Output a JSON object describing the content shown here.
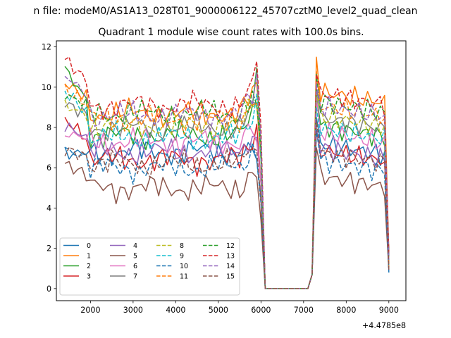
{
  "figure": {
    "suptitle": "n file: modeM0/AS1A13_028T01_9000006122_45707cztM0_level2_quad_clean"
  },
  "chart_data": {
    "type": "line",
    "title": "Quadrant 1 module wise count rates with 100.0s bins.",
    "xlabel": "",
    "ylabel": "",
    "x_offset_label": "+4.4785e8",
    "xlim": [
      1200,
      9400
    ],
    "ylim": [
      -0.6,
      12.3
    ],
    "xticks": [
      2000,
      3000,
      4000,
      5000,
      6000,
      7000,
      8000,
      9000
    ],
    "yticks": [
      0,
      2,
      4,
      6,
      8,
      10,
      12
    ],
    "grid": false,
    "legend": {
      "position": "lower-left",
      "columns": 4
    },
    "x": [
      1400,
      1500,
      1600,
      1700,
      1800,
      1900,
      2000,
      2100,
      2200,
      2300,
      2400,
      2500,
      2600,
      2700,
      2800,
      2900,
      3000,
      3100,
      3200,
      3300,
      3400,
      3500,
      3600,
      3700,
      3800,
      3900,
      4000,
      4100,
      4200,
      4300,
      4400,
      4500,
      4600,
      4700,
      4800,
      4900,
      5000,
      5100,
      5200,
      5300,
      5400,
      5500,
      5600,
      5700,
      5800,
      5900,
      6000,
      6100,
      6200,
      6300,
      6400,
      6500,
      6600,
      6700,
      6800,
      6900,
      7000,
      7100,
      7200,
      7300,
      7400,
      7500,
      7600,
      7700,
      7800,
      7900,
      8000,
      8100,
      8200,
      8300,
      8400,
      8500,
      8600,
      8700,
      8800,
      8900,
      9000
    ],
    "series": [
      {
        "name": "0",
        "color": "#1f77b4",
        "dash": "solid",
        "base": 6.8,
        "start": 6.7,
        "post": 7.2
      },
      {
        "name": "1",
        "color": "#ff7f0e",
        "dash": "solid",
        "base": 8.7,
        "start": 10.2,
        "post": 9.8
      },
      {
        "name": "2",
        "color": "#2ca02c",
        "dash": "solid",
        "base": 7.6,
        "start": 10.9,
        "post": 8.1
      },
      {
        "name": "3",
        "color": "#d62728",
        "dash": "solid",
        "base": 6.4,
        "start": 8.4,
        "post": 6.9
      },
      {
        "name": "4",
        "color": "#9467bd",
        "dash": "solid",
        "base": 6.8,
        "start": 8.1,
        "post": 7.0
      },
      {
        "name": "5",
        "color": "#8c564b",
        "dash": "solid",
        "base": 5.0,
        "start": 6.2,
        "post": 5.6
      },
      {
        "name": "6",
        "color": "#e377c2",
        "dash": "solid",
        "base": 7.3,
        "start": 7.7,
        "post": 7.8
      },
      {
        "name": "7",
        "color": "#7f7f7f",
        "dash": "solid",
        "base": 8.0,
        "start": 9.2,
        "post": 8.5
      },
      {
        "name": "8",
        "color": "#bcbd22",
        "dash": "dashed",
        "base": 8.1,
        "start": 9.1,
        "post": 8.6
      },
      {
        "name": "9",
        "color": "#17becf",
        "dash": "dashed",
        "base": 7.5,
        "start": 9.8,
        "post": 8.0
      },
      {
        "name": "10",
        "color": "#1f77b4",
        "dash": "dashed",
        "base": 6.0,
        "start": 6.9,
        "post": 6.4
      },
      {
        "name": "11",
        "color": "#ff7f0e",
        "dash": "dashed",
        "base": 8.4,
        "start": 9.9,
        "post": 9.1
      },
      {
        "name": "12",
        "color": "#2ca02c",
        "dash": "dashed",
        "base": 8.7,
        "start": 9.6,
        "post": 9.3
      },
      {
        "name": "13",
        "color": "#d62728",
        "dash": "dashed",
        "base": 9.1,
        "start": 11.4,
        "post": 9.7
      },
      {
        "name": "14",
        "color": "#9467bd",
        "dash": "dashed",
        "base": 8.6,
        "start": 10.6,
        "post": 9.1
      },
      {
        "name": "15",
        "color": "#8c564b",
        "dash": "dashed",
        "base": 6.2,
        "start": 6.9,
        "post": 6.8
      }
    ]
  }
}
